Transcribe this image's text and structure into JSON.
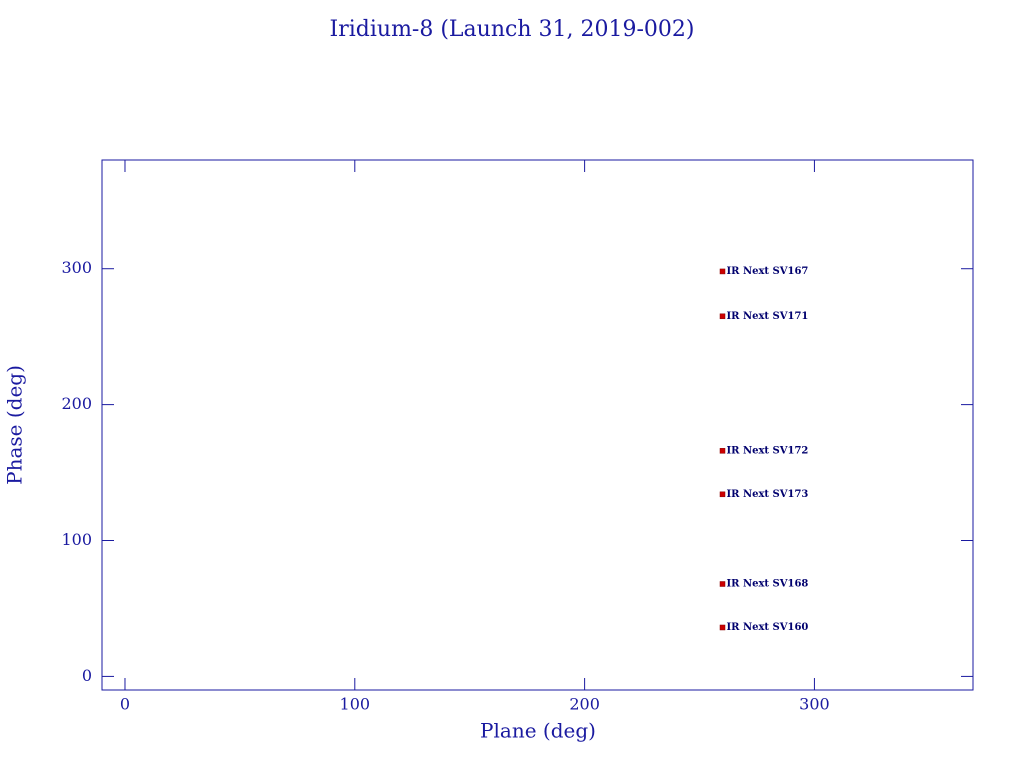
{
  "chart_data": {
    "type": "scatter",
    "title": "Iridium-8 (Launch 31, 2019-002)",
    "xlabel": "Plane (deg)",
    "ylabel": "Phase (deg)",
    "x": [
      260,
      260,
      260,
      260,
      260,
      260
    ],
    "values": [
      298,
      265,
      166,
      134,
      68,
      36
    ],
    "labels": [
      "IR Next SV167",
      "IR Next SV171",
      "IR Next SV172",
      "IR Next SV173",
      "IR Next SV168",
      "IR Next SV160"
    ],
    "color": "#cc0000",
    "axis_color": "#1a1aa0",
    "label_color": "#00006e",
    "xlim": [
      -10,
      369
    ],
    "ylim": [
      -10,
      380
    ],
    "xticks": [
      0,
      100,
      200,
      300
    ],
    "yticks": [
      0,
      100,
      200,
      300
    ],
    "grid": false
  }
}
